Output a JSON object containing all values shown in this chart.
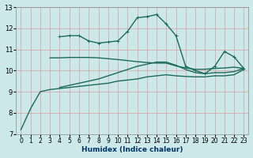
{
  "xlabel": "Humidex (Indice chaleur)",
  "xlim": [
    -0.5,
    23.5
  ],
  "ylim": [
    7,
    13
  ],
  "bg_color": "#cce8e8",
  "grid_color": "#b0d0d0",
  "line_color": "#1a6b5a",
  "xticks": [
    0,
    1,
    2,
    3,
    4,
    5,
    6,
    7,
    8,
    9,
    10,
    11,
    12,
    13,
    14,
    15,
    16,
    17,
    18,
    19,
    20,
    21,
    22,
    23
  ],
  "yticks": [
    7,
    8,
    9,
    10,
    11,
    12,
    13
  ],
  "series": [
    {
      "x": [
        0,
        1,
        2,
        3,
        4,
        5,
        6,
        7,
        8,
        9,
        10,
        11,
        12,
        13,
        14,
        15,
        16,
        17,
        18,
        19,
        20,
        21,
        22,
        23
      ],
      "y": [
        7.2,
        8.2,
        9.0,
        9.1,
        9.15,
        9.2,
        9.25,
        9.3,
        9.35,
        9.4,
        9.5,
        9.55,
        9.6,
        9.7,
        9.75,
        9.8,
        9.75,
        9.72,
        9.7,
        9.7,
        9.75,
        9.75,
        9.8,
        10.05
      ],
      "marker": null,
      "lw": 1.0
    },
    {
      "x": [
        4,
        5,
        6,
        7,
        8,
        9,
        10,
        11,
        12,
        13,
        14,
        15,
        16,
        17,
        18,
        19,
        20,
        21,
        22,
        23
      ],
      "y": [
        9.2,
        9.3,
        9.4,
        9.5,
        9.6,
        9.75,
        9.9,
        10.05,
        10.2,
        10.3,
        10.4,
        10.4,
        10.25,
        10.05,
        9.9,
        9.85,
        9.9,
        9.9,
        9.95,
        10.1
      ],
      "marker": null,
      "lw": 1.0
    },
    {
      "x": [
        3,
        4,
        5,
        6,
        7,
        8,
        9,
        10,
        11,
        12,
        13,
        14,
        15,
        16,
        17,
        18,
        19,
        20,
        21,
        22,
        23
      ],
      "y": [
        10.6,
        10.6,
        10.62,
        10.62,
        10.62,
        10.6,
        10.56,
        10.52,
        10.47,
        10.42,
        10.38,
        10.35,
        10.35,
        10.22,
        10.12,
        10.06,
        10.06,
        10.1,
        10.12,
        10.16,
        10.1
      ],
      "marker": null,
      "lw": 1.0
    },
    {
      "x": [
        4,
        5,
        6,
        7,
        8,
        9,
        10,
        11,
        12,
        13,
        14,
        15,
        16,
        17,
        18,
        19,
        20,
        21,
        22,
        23
      ],
      "y": [
        11.6,
        11.65,
        11.65,
        11.4,
        11.3,
        11.35,
        11.4,
        11.85,
        12.5,
        12.55,
        12.65,
        12.2,
        11.65,
        10.2,
        10.0,
        9.85,
        10.2,
        10.9,
        10.65,
        10.1
      ],
      "marker": "+",
      "lw": 1.0
    }
  ]
}
